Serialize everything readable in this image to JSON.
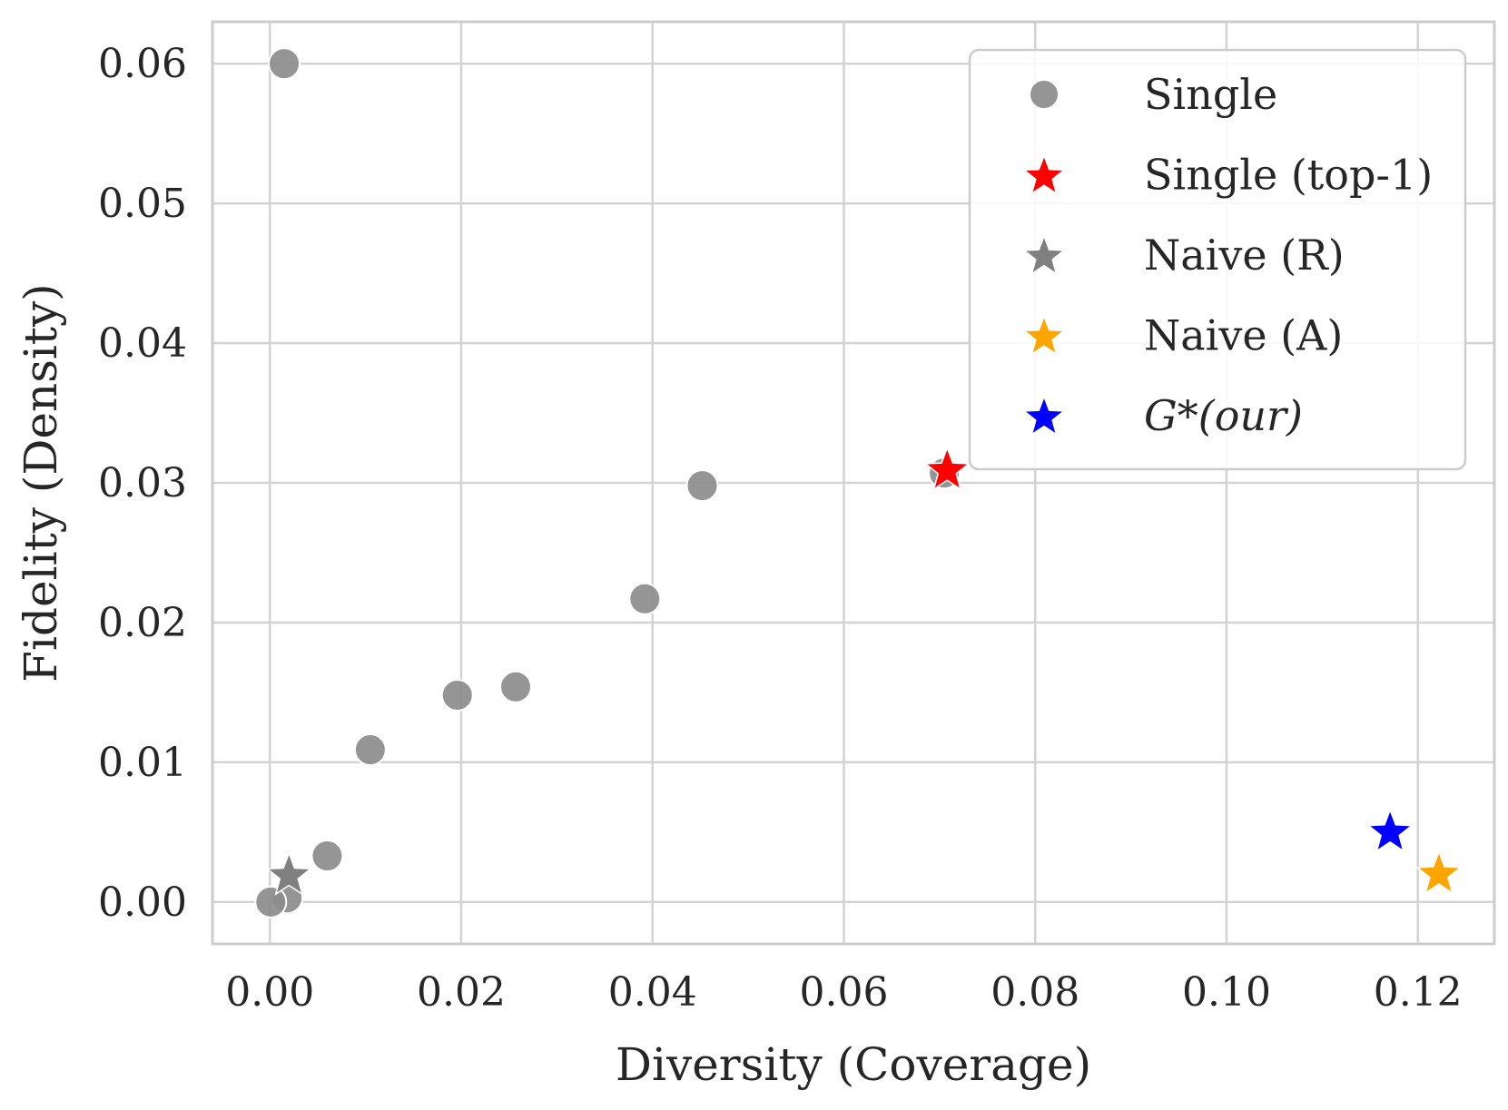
{
  "chart_data": {
    "type": "scatter",
    "title": "",
    "xlabel": "Diversity (Coverage)",
    "ylabel": "Fidelity (Density)",
    "xlim": [
      -0.006,
      0.128
    ],
    "ylim": [
      -0.003,
      0.063
    ],
    "x_ticks": [
      0.0,
      0.02,
      0.04,
      0.06,
      0.08,
      0.1,
      0.12
    ],
    "x_tick_labels": [
      "0.00",
      "0.02",
      "0.04",
      "0.06",
      "0.08",
      "0.10",
      "0.12"
    ],
    "y_ticks": [
      0.0,
      0.01,
      0.02,
      0.03,
      0.04,
      0.05,
      0.06
    ],
    "y_tick_labels": [
      "0.00",
      "0.01",
      "0.02",
      "0.03",
      "0.04",
      "0.05",
      "0.06"
    ],
    "grid": true,
    "legend_position": "top-right",
    "series": [
      {
        "name": "Single",
        "marker": "circle",
        "color": "#8c8c8c",
        "points": [
          {
            "x": 0.0015,
            "y": 0.06
          },
          {
            "x": 0.0452,
            "y": 0.0298
          },
          {
            "x": 0.0392,
            "y": 0.0217
          },
          {
            "x": 0.0257,
            "y": 0.0154
          },
          {
            "x": 0.0196,
            "y": 0.0148
          },
          {
            "x": 0.0105,
            "y": 0.0109
          },
          {
            "x": 0.006,
            "y": 0.0033
          },
          {
            "x": 0.0018,
            "y": 0.0003
          },
          {
            "x": 0.0001,
            "y": 0.0
          },
          {
            "x": 0.0705,
            "y": 0.0307
          }
        ]
      },
      {
        "name": "Single (top-1)",
        "marker": "star",
        "color": "#ff0000",
        "points": [
          {
            "x": 0.0708,
            "y": 0.031
          }
        ]
      },
      {
        "name": "Naive (R)",
        "marker": "star",
        "color": "#808080",
        "points": [
          {
            "x": 0.002,
            "y": 0.002
          }
        ]
      },
      {
        "name": "Naive (A)",
        "marker": "star",
        "color": "#ffa500",
        "points": [
          {
            "x": 0.1222,
            "y": 0.0021
          }
        ]
      },
      {
        "name": "G*(our)",
        "marker": "star",
        "color": "#0000ff",
        "points": [
          {
            "x": 0.1171,
            "y": 0.0051
          }
        ]
      }
    ],
    "legend": [
      {
        "label": "Single",
        "marker": "circle",
        "color": "#8c8c8c",
        "italic": false
      },
      {
        "label": "Single (top-1)",
        "marker": "star",
        "color": "#ff0000",
        "italic": false
      },
      {
        "label": "Naive (R)",
        "marker": "star",
        "color": "#808080",
        "italic": false
      },
      {
        "label": "Naive (A)",
        "marker": "star",
        "color": "#ffa500",
        "italic": false
      },
      {
        "label": "G*(our)",
        "marker": "star",
        "color": "#0000ff",
        "italic": true
      }
    ],
    "colors": {
      "grid": "#d3d3d3",
      "frame": "#cccccc",
      "text": "#262626",
      "background": "#ffffff"
    }
  }
}
